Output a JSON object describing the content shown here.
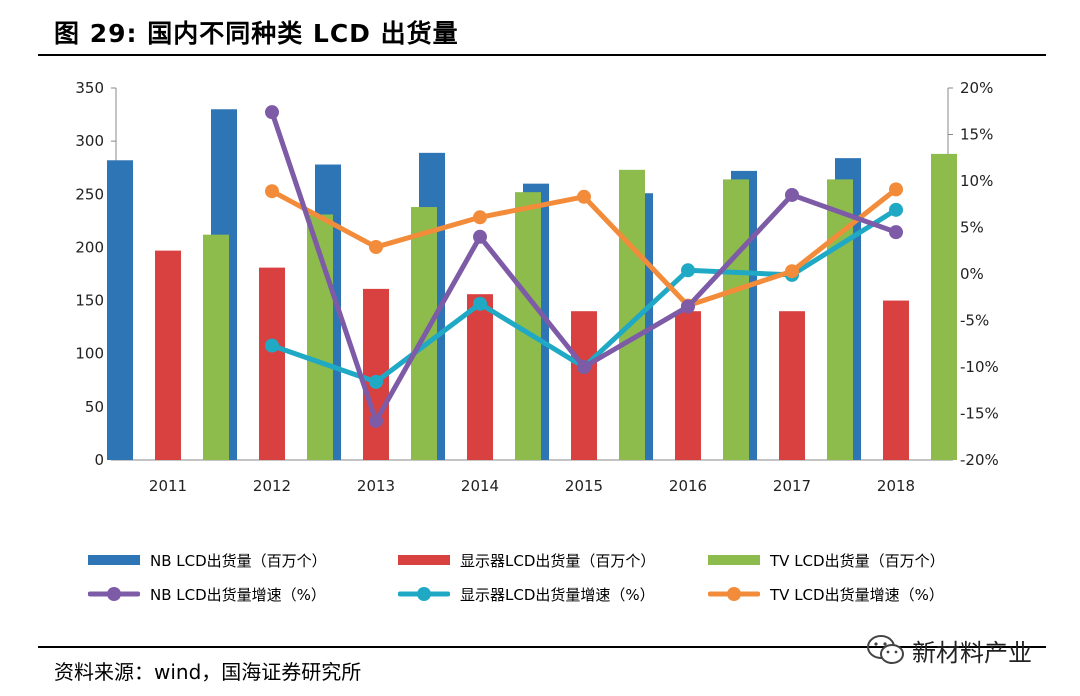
{
  "figure": {
    "title": "图 29:  国内不同种类 LCD 出货量",
    "source": "资料来源：wind，国海证券研究所",
    "watermark": "新材料产业",
    "watermark_icon": "wechat-icon"
  },
  "chart_data": {
    "type": "bar+line",
    "categories": [
      "2011",
      "2012",
      "2013",
      "2014",
      "2015",
      "2016",
      "2017",
      "2018"
    ],
    "y_left": {
      "ylim": [
        0,
        350
      ],
      "ticks": [
        "0",
        "50",
        "100",
        "150",
        "200",
        "250",
        "300",
        "350"
      ]
    },
    "y_right": {
      "ylim": [
        -20,
        20
      ],
      "ticks": [
        "-20%",
        "-15%",
        "-10%",
        "-5%",
        "0%",
        "5%",
        "10%",
        "15%",
        "20%"
      ]
    },
    "grid": false,
    "legend_position": "bottom",
    "bar_series": [
      {
        "name": "NB LCD出货量（百万个）",
        "color": "#2E75B6",
        "values": [
          282,
          330,
          278,
          289,
          260,
          251,
          272,
          284
        ]
      },
      {
        "name": "显示器LCD出货量（百万个）",
        "color": "#D94040",
        "values": [
          197,
          181,
          161,
          156,
          140,
          140,
          140,
          150
        ]
      },
      {
        "name": "TV LCD出货量（百万个）",
        "color": "#8DBB4C",
        "values": [
          212,
          231,
          238,
          252,
          273,
          264,
          264,
          288
        ]
      }
    ],
    "line_series": [
      {
        "name": "NB LCD出货量增速（%）",
        "color": "#7D5BA6",
        "axis": "right",
        "values": [
          null,
          17.4,
          -15.8,
          4.0,
          -10.0,
          -3.5,
          8.5,
          4.5
        ]
      },
      {
        "name": "显示器LCD出货量增速（%）",
        "color": "#20A9C4",
        "axis": "right",
        "values": [
          null,
          -7.7,
          -11.6,
          -3.2,
          -10.0,
          0.4,
          -0.1,
          6.9
        ]
      },
      {
        "name": "TV LCD出货量增速（%）",
        "color": "#F28C3A",
        "axis": "right",
        "values": [
          null,
          8.9,
          2.9,
          6.1,
          8.3,
          -3.4,
          0.3,
          9.1
        ]
      }
    ]
  }
}
